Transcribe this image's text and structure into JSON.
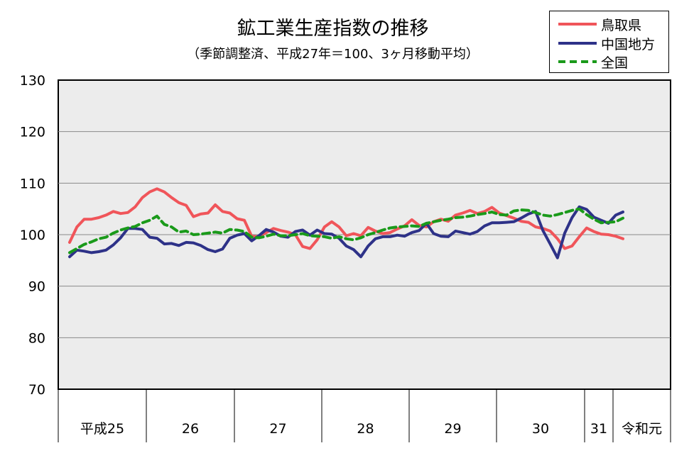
{
  "title": "鉱工業生産指数の推移",
  "subtitle": "（季節調整済、平成27年＝100、3ヶ月移動平均）",
  "chart_data": {
    "type": "line",
    "ylim": [
      70,
      130
    ],
    "yticks": [
      "130",
      "120",
      "110",
      "100",
      "90",
      "80",
      "70"
    ],
    "grid": true,
    "legend_position": "top-right",
    "year_labels": [
      "平成25",
      "26",
      "27",
      "28",
      "29",
      "30",
      "31",
      "令和元"
    ],
    "x_start": "2013-01",
    "series": [
      {
        "name": "鳥取県",
        "color": "#f0555a",
        "dash": false,
        "values": [
          98.5,
          101.5,
          103.0,
          103.0,
          103.3,
          103.8,
          104.5,
          104.1,
          104.3,
          105.4,
          107.2,
          108.3,
          108.9,
          108.3,
          107.2,
          106.2,
          105.7,
          103.5,
          104.0,
          104.2,
          105.8,
          104.5,
          104.2,
          103.1,
          102.8,
          99.7,
          99.6,
          100.4,
          101.2,
          100.8,
          100.5,
          100.0,
          97.7,
          97.3,
          99.0,
          101.5,
          102.5,
          101.5,
          99.8,
          100.2,
          99.8,
          101.4,
          100.7,
          100.2,
          100.4,
          101.1,
          101.7,
          102.9,
          101.8,
          101.5,
          102.5,
          103.0,
          102.6,
          103.8,
          104.2,
          104.7,
          104.1,
          104.5,
          105.3,
          104.2,
          103.7,
          103.2,
          102.6,
          102.4,
          101.5,
          101.2,
          100.7,
          99.2,
          97.3,
          97.8,
          99.6,
          101.3,
          100.6,
          100.1,
          100.0,
          99.7,
          99.2
        ]
      },
      {
        "name": "中国地方",
        "color": "#2e3288",
        "dash": false,
        "values": [
          95.7,
          97.0,
          96.8,
          96.5,
          96.7,
          97.0,
          98.0,
          99.4,
          101.2,
          101.2,
          101.0,
          99.5,
          99.3,
          98.2,
          98.3,
          97.9,
          98.5,
          98.4,
          97.9,
          97.1,
          96.7,
          97.2,
          99.3,
          99.9,
          100.2,
          98.8,
          99.8,
          101.0,
          100.5,
          99.7,
          99.5,
          100.6,
          100.9,
          99.9,
          100.9,
          100.2,
          100.1,
          99.3,
          97.8,
          97.1,
          95.7,
          97.8,
          99.2,
          99.6,
          99.6,
          99.9,
          99.7,
          100.4,
          100.8,
          102.2,
          100.2,
          99.7,
          99.6,
          100.7,
          100.4,
          100.1,
          100.6,
          101.7,
          102.3,
          102.3,
          102.4,
          102.5,
          103.2,
          104.0,
          104.5,
          100.8,
          98.2,
          95.5,
          100.3,
          103.3,
          105.4,
          104.9,
          103.4,
          102.8,
          102.2,
          103.8,
          104.4
        ]
      },
      {
        "name": "全国",
        "color": "#1a9a1a",
        "dash": true,
        "values": [
          96.5,
          97.3,
          98.1,
          98.6,
          99.2,
          99.5,
          100.3,
          100.9,
          101.3,
          101.6,
          102.3,
          102.8,
          103.6,
          102.0,
          101.5,
          100.5,
          100.7,
          100.0,
          100.1,
          100.3,
          100.5,
          100.3,
          101.0,
          100.9,
          100.6,
          99.5,
          99.4,
          99.7,
          100.1,
          99.8,
          99.8,
          100.0,
          100.2,
          99.8,
          99.7,
          99.6,
          99.3,
          99.6,
          99.2,
          99.0,
          99.4,
          100.0,
          100.4,
          100.9,
          101.3,
          101.5,
          101.6,
          101.7,
          101.6,
          102.2,
          102.5,
          102.8,
          103.0,
          103.3,
          103.4,
          103.6,
          103.9,
          104.1,
          104.4,
          103.9,
          103.8,
          104.6,
          104.8,
          104.7,
          104.3,
          103.8,
          103.6,
          103.9,
          104.3,
          104.7,
          105.0,
          103.9,
          103.0,
          102.3,
          102.4,
          102.5,
          103.2
        ]
      }
    ]
  }
}
